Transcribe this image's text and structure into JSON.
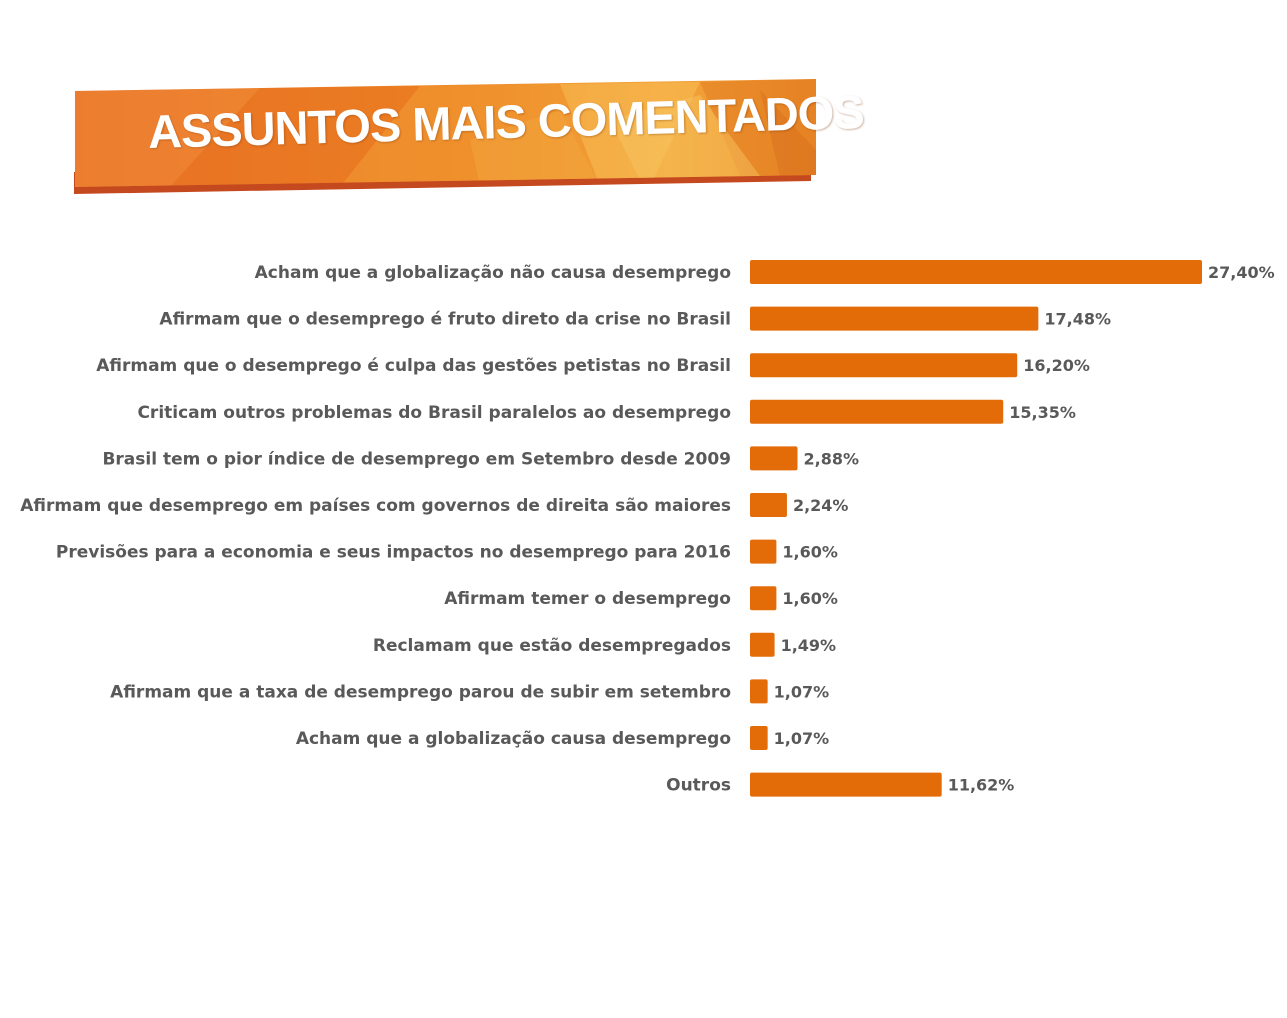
{
  "header": {
    "title": "ASSUNTOS MAIS COMENTADOS"
  },
  "colors": {
    "bar": "#e36c09",
    "banner_main": "#ec7c24",
    "banner_light": "#f6b044",
    "banner_shadow": "#c5491f",
    "label_text": "#595959"
  },
  "chart_data": {
    "type": "bar",
    "orientation": "horizontal",
    "title": "ASSUNTOS MAIS COMENTADOS",
    "xlabel": "",
    "ylabel": "",
    "xlim": [
      0,
      27.4
    ],
    "grid": false,
    "legend": "none",
    "categories": [
      "Acham que a globalização não causa desemprego",
      "Afirmam que o desemprego é fruto direto da crise no Brasil",
      "Afirmam que o desemprego é culpa das gestões petistas no Brasil",
      "Criticam outros problemas do Brasil paralelos ao desemprego",
      "Brasil tem  o pior índice de desemprego em Setembro desde 2009",
      "Afirmam que desemprego em países com governos de direita são maiores",
      "Previsões para a economia e seus impactos no desemprego para 2016",
      "Afirmam temer o desemprego",
      "Reclamam que estão desempregados",
      "Afirmam que a taxa de desemprego parou de subir em setembro",
      "Acham que a globalização causa desemprego",
      "Outros"
    ],
    "values": [
      27.4,
      17.48,
      16.2,
      15.35,
      2.88,
      2.24,
      1.6,
      1.6,
      1.49,
      1.07,
      1.07,
      11.62
    ],
    "value_labels": [
      "27,40%",
      "17,48%",
      "16,20%",
      "15,35%",
      "2,88%",
      "2,24%",
      "1,60%",
      "1,60%",
      "1,49%",
      "1,07%",
      "1,07%",
      "11,62%"
    ]
  }
}
